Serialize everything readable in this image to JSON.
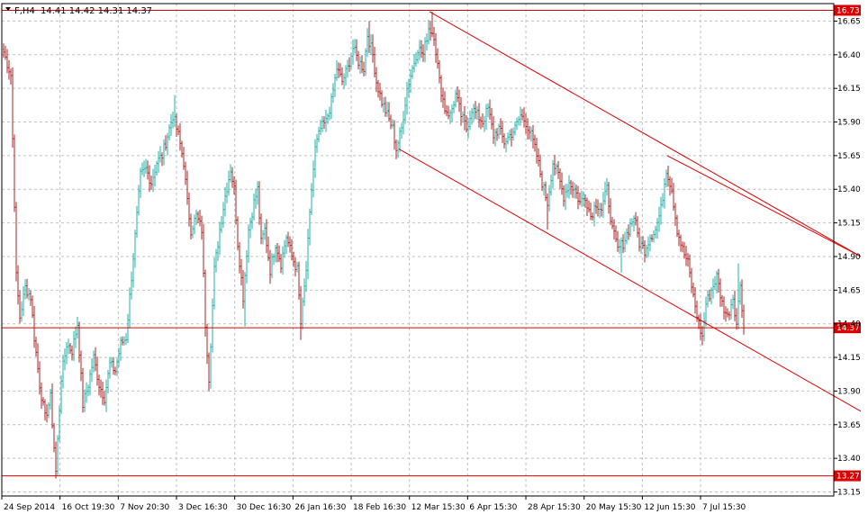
{
  "header": {
    "symbol": "F,H4",
    "ohlc": "14.41 14.42 14.31 14.37",
    "menu_icon": "triangle-down-icon"
  },
  "chart_data": {
    "type": "bar",
    "subtype": "ohlc",
    "symbol": "F",
    "timeframe": "H4",
    "ylim": [
      13.12,
      16.78
    ],
    "y_ticks": [
      "16.65",
      "16.40",
      "16.15",
      "15.90",
      "15.65",
      "15.40",
      "15.15",
      "14.90",
      "14.65",
      "14.40",
      "14.15",
      "13.90",
      "13.65",
      "13.40",
      "13.15"
    ],
    "x_ticks": [
      "24 Sep 2014",
      "16 Oct 19:30",
      "7 Nov 20:30",
      "3 Dec 16:30",
      "30 Dec 16:30",
      "26 Jan 16:30",
      "18 Feb 16:30",
      "12 Mar 15:30",
      "6 Apr 15:30",
      "28 Apr 15:30",
      "20 May 15:30",
      "12 Jun 15:30",
      "7 Jul 15:30"
    ],
    "grid": true,
    "colors": {
      "bull": "#20b2aa",
      "bear": "#b22222",
      "levels": "#dd0000",
      "grid": "#c0c0c0",
      "text": "#000000"
    },
    "levels": [
      {
        "value": 16.73,
        "label": "16.73"
      },
      {
        "value": 14.37,
        "label": "14.37"
      },
      {
        "value": 13.27,
        "label": "13.27"
      }
    ],
    "channel": {
      "upper": {
        "from": {
          "bar": 477,
          "price": 16.72
        },
        "to": {
          "bar": 956,
          "price": 14.9
        }
      },
      "lower": {
        "from": {
          "bar": 443,
          "price": 15.7
        },
        "to": {
          "bar": 956,
          "price": 13.75
        }
      },
      "extra": {
        "from": {
          "bar": 741,
          "price": 15.65
        },
        "to": {
          "bar": 956,
          "price": 14.9
        }
      }
    },
    "anchors": [
      [
        4,
        16.42
      ],
      [
        12,
        16.25
      ],
      [
        16,
        15.3
      ],
      [
        18,
        14.75
      ],
      [
        22,
        14.45
      ],
      [
        28,
        14.67
      ],
      [
        34,
        14.6
      ],
      [
        38,
        14.3
      ],
      [
        44,
        13.95
      ],
      [
        50,
        13.7
      ],
      [
        56,
        13.85
      ],
      [
        62,
        13.3
      ],
      [
        68,
        14.0
      ],
      [
        74,
        14.25
      ],
      [
        80,
        14.2
      ],
      [
        86,
        14.4
      ],
      [
        92,
        13.8
      ],
      [
        98,
        13.95
      ],
      [
        104,
        14.15
      ],
      [
        110,
        13.95
      ],
      [
        116,
        13.85
      ],
      [
        122,
        14.1
      ],
      [
        128,
        14.05
      ],
      [
        134,
        14.25
      ],
      [
        140,
        14.3
      ],
      [
        146,
        14.75
      ],
      [
        150,
        15.05
      ],
      [
        156,
        15.5
      ],
      [
        162,
        15.55
      ],
      [
        168,
        15.45
      ],
      [
        174,
        15.6
      ],
      [
        180,
        15.65
      ],
      [
        186,
        15.8
      ],
      [
        192,
        15.95
      ],
      [
        198,
        15.8
      ],
      [
        204,
        15.6
      ],
      [
        208,
        15.3
      ],
      [
        212,
        15.1
      ],
      [
        218,
        15.2
      ],
      [
        224,
        15.1
      ],
      [
        228,
        14.4
      ],
      [
        232,
        14.0
      ],
      [
        238,
        14.8
      ],
      [
        244,
        15.1
      ],
      [
        250,
        15.35
      ],
      [
        256,
        15.55
      ],
      [
        260,
        15.4
      ],
      [
        264,
        15.0
      ],
      [
        270,
        14.6
      ],
      [
        276,
        15.1
      ],
      [
        282,
        15.3
      ],
      [
        286,
        15.4
      ],
      [
        290,
        15.0
      ],
      [
        294,
        15.1
      ],
      [
        300,
        14.8
      ],
      [
        306,
        15.0
      ],
      [
        312,
        14.85
      ],
      [
        318,
        15.05
      ],
      [
        324,
        14.9
      ],
      [
        330,
        14.8
      ],
      [
        334,
        14.4
      ],
      [
        340,
        14.8
      ],
      [
        346,
        15.4
      ],
      [
        350,
        15.7
      ],
      [
        356,
        15.85
      ],
      [
        362,
        15.9
      ],
      [
        368,
        16.05
      ],
      [
        374,
        16.3
      ],
      [
        380,
        16.2
      ],
      [
        386,
        16.3
      ],
      [
        392,
        16.45
      ],
      [
        398,
        16.35
      ],
      [
        404,
        16.3
      ],
      [
        408,
        16.55
      ],
      [
        414,
        16.4
      ],
      [
        418,
        16.2
      ],
      [
        424,
        16.05
      ],
      [
        430,
        15.95
      ],
      [
        436,
        15.85
      ],
      [
        440,
        15.7
      ],
      [
        446,
        15.85
      ],
      [
        452,
        16.15
      ],
      [
        458,
        16.3
      ],
      [
        464,
        16.45
      ],
      [
        470,
        16.4
      ],
      [
        476,
        16.6
      ],
      [
        482,
        16.55
      ],
      [
        488,
        16.2
      ],
      [
        494,
        16.0
      ],
      [
        500,
        15.95
      ],
      [
        506,
        16.1
      ],
      [
        512,
        15.95
      ],
      [
        518,
        15.85
      ],
      [
        524,
        16.0
      ],
      [
        530,
        15.95
      ],
      [
        536,
        15.9
      ],
      [
        542,
        16.0
      ],
      [
        548,
        15.8
      ],
      [
        554,
        15.85
      ],
      [
        560,
        15.75
      ],
      [
        566,
        15.8
      ],
      [
        572,
        15.85
      ],
      [
        578,
        15.95
      ],
      [
        584,
        15.9
      ],
      [
        590,
        15.8
      ],
      [
        596,
        15.65
      ],
      [
        602,
        15.45
      ],
      [
        608,
        15.3
      ],
      [
        614,
        15.6
      ],
      [
        620,
        15.5
      ],
      [
        626,
        15.35
      ],
      [
        632,
        15.45
      ],
      [
        638,
        15.4
      ],
      [
        644,
        15.3
      ],
      [
        650,
        15.35
      ],
      [
        656,
        15.2
      ],
      [
        662,
        15.3
      ],
      [
        668,
        15.25
      ],
      [
        674,
        15.4
      ],
      [
        680,
        15.1
      ],
      [
        686,
        14.95
      ],
      [
        692,
        15.0
      ],
      [
        698,
        15.1
      ],
      [
        704,
        15.2
      ],
      [
        710,
        15.0
      ],
      [
        716,
        14.95
      ],
      [
        722,
        15.05
      ],
      [
        728,
        15.1
      ],
      [
        734,
        15.25
      ],
      [
        740,
        15.55
      ],
      [
        746,
        15.4
      ],
      [
        752,
        15.1
      ],
      [
        758,
        14.95
      ],
      [
        764,
        14.85
      ],
      [
        770,
        14.6
      ],
      [
        776,
        14.4
      ],
      [
        780,
        14.3
      ],
      [
        784,
        14.55
      ],
      [
        790,
        14.65
      ],
      [
        796,
        14.75
      ],
      [
        802,
        14.55
      ],
      [
        808,
        14.45
      ],
      [
        814,
        14.6
      ],
      [
        818,
        14.4
      ],
      [
        822,
        14.7
      ],
      [
        826,
        14.37
      ]
    ],
    "spikes": [
      [
        194,
        16.1,
        "hi"
      ],
      [
        232,
        13.9,
        "lo"
      ],
      [
        272,
        14.38,
        "lo"
      ],
      [
        334,
        14.28,
        "lo"
      ],
      [
        410,
        16.65,
        "hi"
      ],
      [
        480,
        16.72,
        "hi"
      ],
      [
        608,
        15.1,
        "lo"
      ],
      [
        690,
        14.78,
        "lo"
      ],
      [
        780,
        14.24,
        "lo"
      ],
      [
        820,
        14.85,
        "hi"
      ],
      [
        62,
        13.25,
        "lo"
      ]
    ]
  }
}
